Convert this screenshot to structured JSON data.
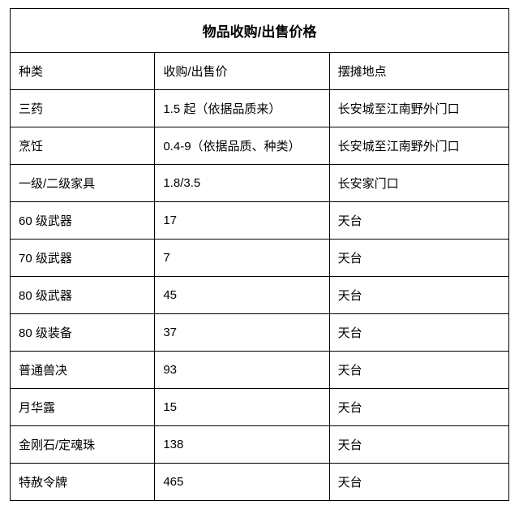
{
  "table": {
    "title": "物品收购/出售价格",
    "columns": [
      "种类",
      "收购/出售价",
      "摆摊地点"
    ],
    "rows": [
      [
        "三药",
        "1.5 起（依据品质来）",
        "长安城至江南野外门口"
      ],
      [
        "烹饪",
        "0.4-9（依据品质、种类）",
        "长安城至江南野外门口"
      ],
      [
        "一级/二级家具",
        "1.8/3.5",
        "长安家门口"
      ],
      [
        "60 级武器",
        "17",
        "天台"
      ],
      [
        "70 级武器",
        "7",
        "天台"
      ],
      [
        "80 级武器",
        "45",
        "天台"
      ],
      [
        "80 级装备",
        "37",
        "天台"
      ],
      [
        "普通兽决",
        "93",
        "天台"
      ],
      [
        "月华露",
        "15",
        "天台"
      ],
      [
        "金刚石/定魂珠",
        "138",
        "天台"
      ],
      [
        "特赦令牌",
        "465",
        "天台"
      ]
    ]
  }
}
